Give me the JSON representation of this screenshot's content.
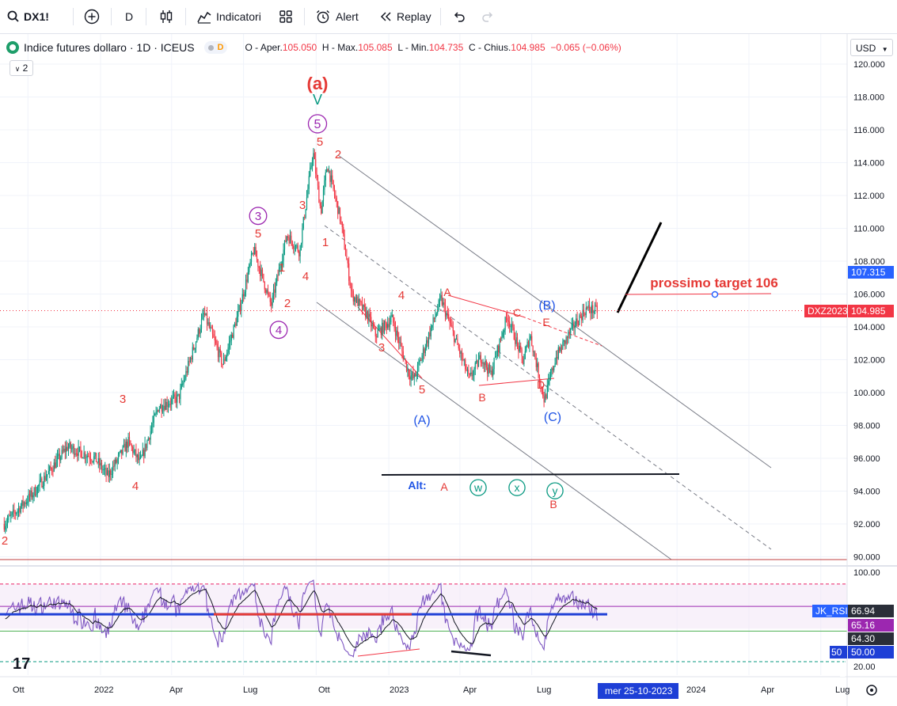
{
  "toolbar": {
    "symbol": "DX1!",
    "interval": "D",
    "indicators_label": "Indicatori",
    "alert_label": "Alert",
    "replay_label": "Replay"
  },
  "legend": {
    "title": "Indice futures dollaro · 1D · ICEUS",
    "badge": "D",
    "o_label": "O - Aper.",
    "o_value": "105.050",
    "h_label": "H - Max.",
    "h_value": "105.085",
    "l_label": "L - Min.",
    "l_value": "104.735",
    "c_label": "C - Chius.",
    "c_value": "104.985",
    "change": "−0.065 (−0.06%)",
    "collapse_count": "2"
  },
  "currency": "USD",
  "colors": {
    "up": "#089981",
    "down": "#f23645",
    "wave_red": "#e53935",
    "wave_purple": "#9c27b0",
    "wave_blue": "#1e53e5",
    "wave_teal": "#089981",
    "rsi": "#7e57c2",
    "axis_blue": "#2962ff"
  },
  "chart_data": [
    {
      "type": "candlestick",
      "title": "Indice futures dollaro · 1D · ICEUS",
      "x_ticks": [
        "Ott",
        "2022",
        "Apr",
        "Lug",
        "Ott",
        "2023",
        "Apr",
        "Lug",
        "2024",
        "Apr",
        "Lug"
      ],
      "y_ticks": [
        "120.000",
        "118.000",
        "116.000",
        "114.000",
        "112.000",
        "110.000",
        "108.000",
        "106.000",
        "104.000",
        "102.000",
        "100.000",
        "98.000",
        "96.000",
        "94.000",
        "92.000",
        "90.000"
      ],
      "ylim": [
        89.8,
        120.4
      ],
      "anchors": [
        {
          "date": "2021-09-01",
          "price": 92.0
        },
        {
          "date": "2021-10-10",
          "price": 94.0
        },
        {
          "date": "2021-11-20",
          "price": 96.7
        },
        {
          "date": "2021-12-25",
          "price": 96.0
        },
        {
          "date": "2022-01-10",
          "price": 94.9
        },
        {
          "date": "2022-02-05",
          "price": 97.0
        },
        {
          "date": "2022-02-20",
          "price": 95.7
        },
        {
          "date": "2022-03-15",
          "price": 99.1
        },
        {
          "date": "2022-04-10",
          "price": 99.7
        },
        {
          "date": "2022-05-12",
          "price": 104.8
        },
        {
          "date": "2022-06-05",
          "price": 101.7
        },
        {
          "date": "2022-06-25",
          "price": 104.9
        },
        {
          "date": "2022-07-14",
          "price": 108.7
        },
        {
          "date": "2022-08-05",
          "price": 105.3
        },
        {
          "date": "2022-08-25",
          "price": 109.6
        },
        {
          "date": "2022-09-10",
          "price": 108.6
        },
        {
          "date": "2022-09-27",
          "price": 114.7
        },
        {
          "date": "2022-10-07",
          "price": 111.0
        },
        {
          "date": "2022-10-15",
          "price": 113.9
        },
        {
          "date": "2022-11-01",
          "price": 110.5
        },
        {
          "date": "2022-11-15",
          "price": 106.0
        },
        {
          "date": "2022-12-05",
          "price": 104.7
        },
        {
          "date": "2022-12-15",
          "price": 103.5
        },
        {
          "date": "2023-01-05",
          "price": 104.5
        },
        {
          "date": "2023-01-26",
          "price": 101.2
        },
        {
          "date": "2023-02-02",
          "price": 100.8
        },
        {
          "date": "2023-03-08",
          "price": 105.7
        },
        {
          "date": "2023-04-13",
          "price": 100.8
        },
        {
          "date": "2023-04-28",
          "price": 102.2
        },
        {
          "date": "2023-05-10",
          "price": 101.1
        },
        {
          "date": "2023-05-31",
          "price": 104.7
        },
        {
          "date": "2023-06-20",
          "price": 101.9
        },
        {
          "date": "2023-06-29",
          "price": 103.5
        },
        {
          "date": "2023-07-17",
          "price": 99.5
        },
        {
          "date": "2023-07-31",
          "price": 102.1
        },
        {
          "date": "2023-08-25",
          "price": 104.2
        },
        {
          "date": "2023-09-08",
          "price": 105.1
        },
        {
          "date": "2023-09-22",
          "price": 104.985
        }
      ],
      "last_price_label": "DXZ2023",
      "last_price": "104.985",
      "crosshair_price": "107.315",
      "crosshair_date": "mer 25-10-2023",
      "annotations": [
        {
          "text": "(a)",
          "color": "wave_red"
        },
        {
          "text": "V",
          "color": "wave_teal"
        },
        {
          "text": "5",
          "circled": true,
          "color": "wave_purple"
        },
        {
          "text": "3",
          "circled": true,
          "color": "wave_purple"
        },
        {
          "text": "4",
          "circled": true,
          "color": "wave_purple"
        },
        {
          "text": "5"
        },
        {
          "text": "2"
        },
        {
          "text": "3"
        },
        {
          "text": "1"
        },
        {
          "text": "1"
        },
        {
          "text": "4"
        },
        {
          "text": "2"
        },
        {
          "text": "5"
        },
        {
          "text": "3"
        },
        {
          "text": "4"
        },
        {
          "text": "2"
        },
        {
          "text": "4"
        },
        {
          "text": "3"
        },
        {
          "text": "5"
        },
        {
          "text": "A"
        },
        {
          "text": "B"
        },
        {
          "text": "C"
        },
        {
          "text": "D"
        },
        {
          "text": "E"
        },
        {
          "text": "(A)",
          "color": "wave_blue"
        },
        {
          "text": "(B)",
          "color": "wave_blue"
        },
        {
          "text": "(C)",
          "color": "wave_blue"
        },
        {
          "text": "Alt:",
          "color": "wave_blue"
        },
        {
          "text": "A"
        },
        {
          "text": "w",
          "circled": true,
          "color": "wave_teal"
        },
        {
          "text": "x",
          "circled": true,
          "color": "wave_teal"
        },
        {
          "text": "y",
          "circled": true,
          "color": "wave_teal"
        },
        {
          "text": "B"
        },
        {
          "text": "prossimo target 106"
        }
      ]
    },
    {
      "type": "line",
      "title": "JK_RSI",
      "y_ticks": [
        "100.00",
        "20.00"
      ],
      "ylim": [
        15,
        103
      ],
      "values": {
        "JK_RSI": "66.94",
        "S": "65.16",
        "E": "64.30",
        "level": "50.00"
      }
    }
  ]
}
